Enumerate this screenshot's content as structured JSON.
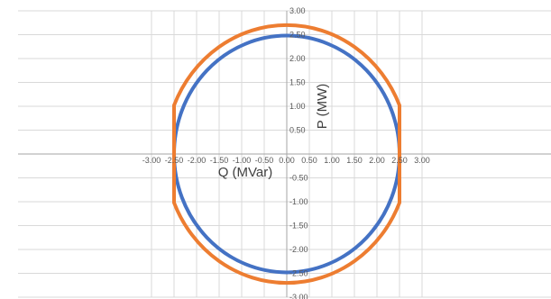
{
  "chart_data": {
    "type": "line",
    "title": "",
    "xlabel": "Q (MVar)",
    "ylabel": "P (MW)",
    "xlim": [
      -3.0,
      3.0
    ],
    "ylim": [
      -3.0,
      3.0
    ],
    "x_ticks": [
      "-3.00",
      "-2.50",
      "-2.00",
      "-1.50",
      "-1.00",
      "-0.50",
      "0.00",
      "0.50",
      "1.00",
      "1.50",
      "2.00",
      "2.50",
      "3.00"
    ],
    "y_ticks": [
      "3.00",
      "2.50",
      "2.00",
      "1.50",
      "1.00",
      "0.50",
      "-0.50",
      "-1.00",
      "-1.50",
      "-2.00",
      "-2.50",
      "-3.00"
    ],
    "grid": true,
    "legend": "none",
    "series": [
      {
        "color": "#4472C4",
        "shape": "ellipse",
        "x": [
          2.5,
          2.17,
          1.25,
          0.0,
          -1.25,
          -2.17,
          -2.5,
          -2.17,
          -1.25,
          0.0,
          1.25,
          2.17,
          2.5
        ],
        "y": [
          0.0,
          1.24,
          2.14,
          2.48,
          2.14,
          1.24,
          0.0,
          -1.24,
          -2.14,
          -2.48,
          -2.14,
          -1.24,
          0.0
        ]
      },
      {
        "color": "#ED7D31",
        "shape": "ellipse with vertical segments at Q = ±2.5",
        "x": [
          2.5,
          2.5,
          2.17,
          1.25,
          0.0,
          -1.25,
          -2.17,
          -2.5,
          -2.5,
          -2.5,
          -2.17,
          -1.25,
          0.0,
          1.25,
          2.17,
          2.5,
          2.5
        ],
        "y": [
          0.0,
          1.25,
          1.71,
          2.34,
          2.7,
          2.34,
          1.71,
          1.25,
          0.0,
          -1.25,
          -1.71,
          -2.34,
          -2.7,
          -2.34,
          -1.71,
          -1.25,
          0.0
        ]
      }
    ]
  }
}
